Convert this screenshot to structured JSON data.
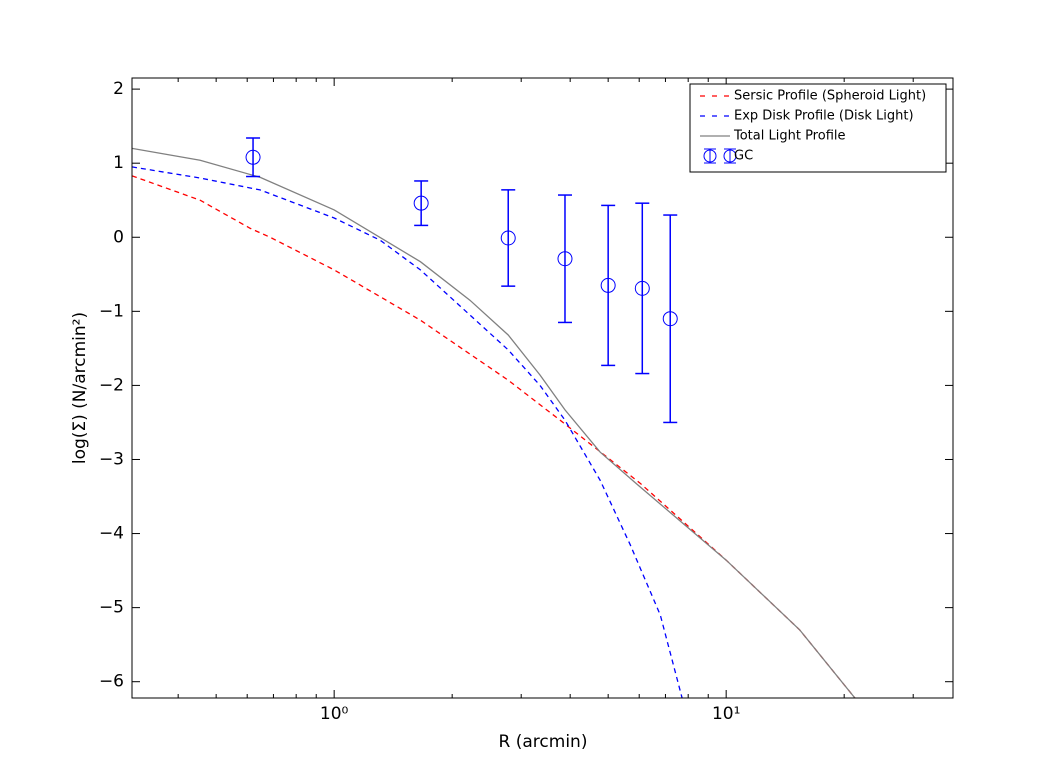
{
  "chart_data": {
    "type": "line",
    "xlabel": "R (arcmin)",
    "ylabel": "log(Σ) (N/arcmin²)",
    "xscale": "log",
    "xlim": [
      0.305,
      37.9
    ],
    "ylim": [
      -6.22,
      2.15
    ],
    "xticks": [
      {
        "value": 1,
        "label": "10⁰"
      },
      {
        "value": 10,
        "label": "10¹"
      }
    ],
    "yticks": [
      {
        "value": -6,
        "label": "−6"
      },
      {
        "value": -5,
        "label": "−5"
      },
      {
        "value": -4,
        "label": "−4"
      },
      {
        "value": -3,
        "label": "−3"
      },
      {
        "value": -2,
        "label": "−2"
      },
      {
        "value": -1,
        "label": "−1"
      },
      0,
      1,
      2
    ],
    "legend": "upper right",
    "series": [
      {
        "name": "Sersic Profile (Spheroid Light)",
        "color": "#ff0000",
        "style": "dashed",
        "x": [
          0.305,
          0.455,
          0.611,
          0.687,
          1,
          1.66,
          2.78,
          3.77,
          6.03,
          10,
          15.4,
          21.3
        ],
        "values": [
          0.83,
          0.5,
          0.12,
          0.0,
          -0.44,
          -1.12,
          -1.93,
          -2.47,
          -3.32,
          -4.36,
          -5.3,
          -6.22
        ]
      },
      {
        "name": "Exp Disk Profile (Disk Light)",
        "color": "#0000ff",
        "style": "dashed",
        "x": [
          0.305,
          0.455,
          0.647,
          1,
          1.31,
          1.66,
          2.22,
          2.78,
          3.35,
          3.88,
          4.77,
          5.69,
          6.79,
          7.72
        ],
        "values": [
          0.95,
          0.8,
          0.64,
          0.26,
          -0.04,
          -0.44,
          -1.05,
          -1.52,
          -2.0,
          -2.47,
          -3.28,
          -4.15,
          -5.1,
          -6.22
        ]
      },
      {
        "name": "Total Light Profile",
        "color": "#808080",
        "style": "solid",
        "x": [
          0.305,
          0.455,
          0.647,
          1,
          1.66,
          2.22,
          2.78,
          3.35,
          3.88,
          4.77,
          6.03,
          10,
          15.4,
          21.3
        ],
        "values": [
          1.2,
          1.04,
          0.81,
          0.37,
          -0.33,
          -0.85,
          -1.32,
          -1.86,
          -2.33,
          -2.9,
          -3.37,
          -4.36,
          -5.3,
          -6.22
        ]
      },
      {
        "name": "GC",
        "color": "#0000ff",
        "style": "errorbar",
        "x": [
          0.621,
          1.667,
          2.78,
          3.88,
          5.0,
          6.11,
          7.2
        ],
        "values": [
          1.08,
          0.46,
          -0.01,
          -0.29,
          -0.65,
          -0.69,
          -1.1
        ],
        "errors": [
          0.26,
          0.3,
          0.65,
          0.86,
          1.08,
          1.15,
          1.4
        ]
      }
    ]
  }
}
